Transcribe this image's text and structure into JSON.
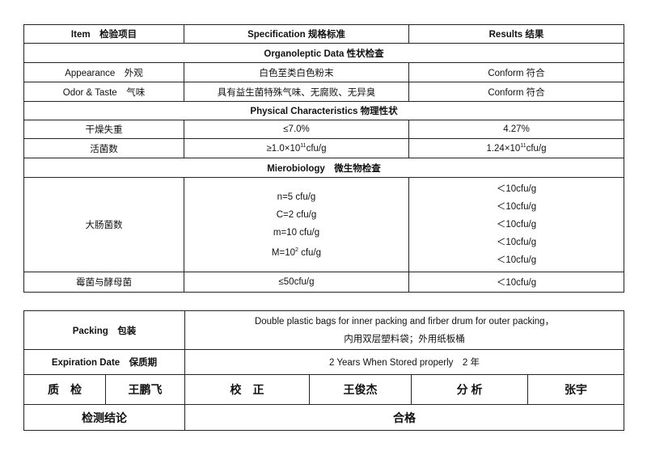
{
  "header": {
    "item": "Item　检验项目",
    "specification": "Specification 规格标准",
    "results": "Results  结果"
  },
  "sections": {
    "organoleptic": "Organoleptic Data 性状检查",
    "physical": "Physical Characteristics 物理性状",
    "micro": "Mierobiology　微生物检查"
  },
  "rows": [
    {
      "item": "Appearance　外观",
      "spec": "白色至类白色粉末",
      "result": "Conform 符合"
    },
    {
      "item": "Odor & Taste　气味",
      "spec": "具有益生菌特殊气味、无腐败、无异臭",
      "result": "Conform 符合"
    },
    {
      "item": "干燥失重",
      "spec": "≤7.0%",
      "result": "4.27%"
    },
    {
      "item": "活菌数",
      "spec_prefix": "≥1.0×10",
      "spec_sup": "11",
      "spec_suffix": "cfu/g",
      "result_prefix": "1.24×10",
      "result_sup": "11",
      "result_suffix": "cfu/g"
    },
    {
      "item": "大肠菌数",
      "spec_lines": [
        "n=5 cfu/g",
        "C=2 cfu/g",
        "m=10 cfu/g"
      ],
      "spec_last_prefix": "M=10",
      "spec_last_sup": "2",
      "spec_last_suffix": " cfu/g",
      "results": [
        "＜10cfu/g",
        "＜10cfu/g",
        "＜10cfu/g",
        "＜10cfu/g",
        "＜10cfu/g"
      ]
    },
    {
      "item": "霉菌与酵母菌",
      "spec": "≤50cfu/g",
      "result": "＜10cfu/g"
    }
  ],
  "packing": {
    "label": "Packing　包装",
    "line1": "Double plastic bags for inner packing and firber drum for outer packing，",
    "line2": "内用双层塑料袋；外用纸板桶"
  },
  "expiration": {
    "label": "Expiration Date　保质期",
    "value": "2 Years When Stored properly　2  年"
  },
  "signatures": {
    "qc_label": "质　检",
    "qc_name": "王鹏飞",
    "check_label": "校　正",
    "check_name": "王俊杰",
    "analysis_label": "分 析",
    "analysis_name": "张宇"
  },
  "conclusion": {
    "label": "检测结论",
    "value": "合格"
  }
}
